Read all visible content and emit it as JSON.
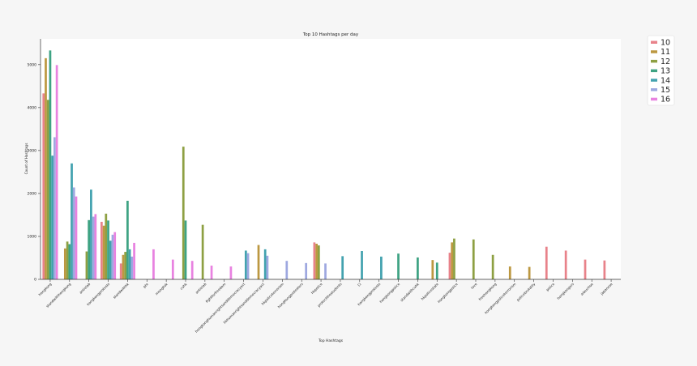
{
  "chart_data": {
    "type": "bar",
    "title": "Top 10 Hashtags per day",
    "xlabel": "Top Hashtags",
    "ylabel": "Count of Hashtags",
    "ylim": [
      0,
      5600
    ],
    "yticks": [
      0,
      1000,
      2000,
      3000,
      4000,
      5000
    ],
    "grid": false,
    "legend_position": "outside-right",
    "categories": [
      "hongkong",
      "standwithhongkong",
      "antielab",
      "hongkongprotests",
      "standwithhk",
      "pte",
      "mongkok",
      "cuhk",
      "antielab",
      "fightforfreedom",
      "hongkonghumanrightsanddemocracyact",
      "hkhumanrightsanddemocracyact",
      "hkpoliceterrorism",
      "hongkongprotesters",
      "hkpolice",
      "protectthestudents",
      "口",
      "hongkongprotests",
      "hongkongpolice",
      "standwithcuhk",
      "hkpolicestate",
      "hongkongpolice",
      "love",
      "freehongkong",
      "hongkongpoliceterrorism",
      "policebrutality",
      "police",
      "hongkongers",
      "aiwuchoe",
      "japanese"
    ],
    "series": [
      {
        "name": "10",
        "color": "#e8828a",
        "values": [
          4330,
          0,
          0,
          1340,
          370,
          0,
          0,
          0,
          0,
          0,
          0,
          0,
          0,
          0,
          860,
          0,
          0,
          0,
          0,
          0,
          0,
          620,
          0,
          0,
          0,
          0,
          760,
          670,
          460,
          440
        ]
      },
      {
        "name": "11",
        "color": "#bc9841",
        "values": [
          5150,
          720,
          0,
          1250,
          570,
          0,
          0,
          0,
          0,
          0,
          0,
          800,
          0,
          0,
          830,
          0,
          0,
          0,
          0,
          0,
          450,
          860,
          0,
          0,
          300,
          290,
          0,
          0,
          0,
          0
        ]
      },
      {
        "name": "12",
        "color": "#8ea043",
        "values": [
          4180,
          880,
          650,
          1530,
          640,
          0,
          0,
          3090,
          1270,
          0,
          0,
          0,
          0,
          0,
          790,
          0,
          0,
          0,
          0,
          0,
          0,
          950,
          930,
          570,
          0,
          0,
          0,
          0,
          0,
          0
        ]
      },
      {
        "name": "13",
        "color": "#3ea383",
        "values": [
          5330,
          820,
          1380,
          1370,
          1830,
          0,
          0,
          1370,
          0,
          0,
          0,
          0,
          0,
          0,
          0,
          0,
          0,
          0,
          600,
          510,
          390,
          0,
          0,
          0,
          0,
          0,
          0,
          0,
          0,
          0
        ]
      },
      {
        "name": "14",
        "color": "#43a2af",
        "values": [
          2880,
          2700,
          2090,
          900,
          700,
          0,
          0,
          0,
          0,
          0,
          670,
          700,
          0,
          0,
          0,
          540,
          660,
          530,
          0,
          0,
          0,
          0,
          0,
          0,
          0,
          0,
          0,
          0,
          0,
          0
        ]
      },
      {
        "name": "15",
        "color": "#9ea8e0",
        "values": [
          3310,
          2140,
          1460,
          1040,
          530,
          0,
          0,
          0,
          0,
          0,
          610,
          550,
          430,
          380,
          370,
          0,
          0,
          0,
          0,
          0,
          0,
          0,
          0,
          0,
          0,
          0,
          0,
          0,
          0,
          0
        ]
      },
      {
        "name": "16",
        "color": "#e882e0",
        "values": [
          4990,
          1930,
          1520,
          1100,
          850,
          700,
          460,
          430,
          320,
          300,
          0,
          0,
          0,
          0,
          0,
          0,
          0,
          0,
          0,
          0,
          0,
          0,
          0,
          0,
          0,
          0,
          0,
          0,
          0,
          0
        ]
      }
    ]
  }
}
